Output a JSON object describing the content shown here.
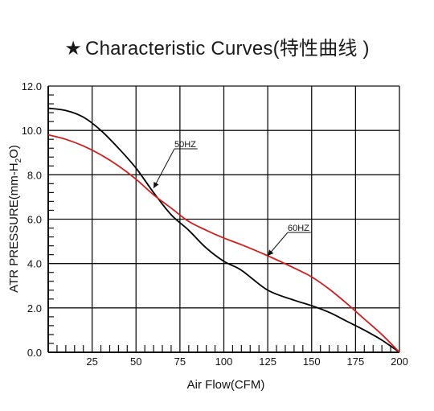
{
  "title": {
    "star": "★",
    "text": "Characteristic Curves(特性曲线 )"
  },
  "chart_data": {
    "type": "line",
    "xlabel": "Air Flow(CFM)",
    "ylabel": "ATR PRESSURE(mm-H2O)",
    "ylabel_parts": {
      "main": "ATR PRESSURE(mm-H",
      "sub": "2",
      "end": "O)"
    },
    "xlim": [
      0,
      200
    ],
    "ylim": [
      0,
      12
    ],
    "grid": true,
    "x_ticks": [
      25,
      50,
      75,
      100,
      125,
      150,
      175,
      200
    ],
    "x_tick_labels": [
      "25",
      "50",
      "75",
      "100",
      "125",
      "150",
      "175",
      "200"
    ],
    "y_ticks": [
      0,
      2,
      4,
      6,
      8,
      10,
      12
    ],
    "y_tick_labels": [
      "0.0",
      "2.0",
      "4.0",
      "6.0",
      "8.0",
      "10.0",
      "12.0"
    ],
    "series": [
      {
        "name": "50HZ",
        "color": "#000000",
        "x": [
          0,
          10,
          20,
          30,
          40,
          50,
          60,
          70,
          80,
          90,
          100,
          110,
          125,
          140,
          150,
          160,
          170,
          180,
          190,
          200
        ],
        "y": [
          11.0,
          10.9,
          10.6,
          10.0,
          9.2,
          8.3,
          7.2,
          6.2,
          5.5,
          4.7,
          4.1,
          3.7,
          2.8,
          2.35,
          2.1,
          1.8,
          1.4,
          1.0,
          0.55,
          0.0
        ]
      },
      {
        "name": "60HZ",
        "color": "#cc1f1f",
        "x": [
          0,
          10,
          20,
          30,
          40,
          50,
          60,
          70,
          80,
          90,
          100,
          110,
          125,
          140,
          150,
          160,
          170,
          180,
          190,
          200
        ],
        "y": [
          9.8,
          9.6,
          9.3,
          8.9,
          8.4,
          7.8,
          7.1,
          6.5,
          5.9,
          5.5,
          5.15,
          4.85,
          4.35,
          3.8,
          3.4,
          2.85,
          2.2,
          1.5,
          0.8,
          0.0
        ]
      }
    ],
    "annotations": [
      {
        "label": "50HZ",
        "target": [
          60,
          7.4
        ]
      },
      {
        "label": "60HZ",
        "target": [
          125,
          4.35
        ]
      }
    ]
  }
}
